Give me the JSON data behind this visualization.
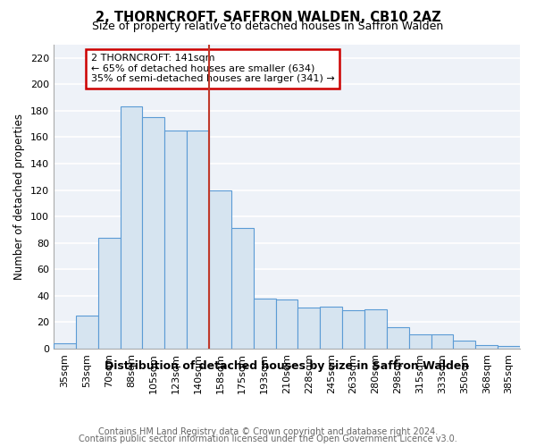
{
  "title": "2, THORNCROFT, SAFFRON WALDEN, CB10 2AZ",
  "subtitle": "Size of property relative to detached houses in Saffron Walden",
  "xlabel": "Distribution of detached houses by size in Saffron Walden",
  "ylabel": "Number of detached properties",
  "categories": [
    "35sqm",
    "53sqm",
    "70sqm",
    "88sqm",
    "105sqm",
    "123sqm",
    "140sqm",
    "158sqm",
    "175sqm",
    "193sqm",
    "210sqm",
    "228sqm",
    "245sqm",
    "263sqm",
    "280sqm",
    "298sqm",
    "315sqm",
    "333sqm",
    "350sqm",
    "368sqm",
    "385sqm"
  ],
  "values": [
    4,
    25,
    84,
    183,
    175,
    165,
    165,
    120,
    91,
    38,
    37,
    31,
    32,
    29,
    30,
    16,
    11,
    11,
    6,
    3,
    2
  ],
  "bar_color": "#d6e4f0",
  "bar_edge_color": "#5b9bd5",
  "vline_x": 6.5,
  "vline_color": "#c0392b",
  "annotation_text": "2 THORNCROFT: 141sqm\n← 65% of detached houses are smaller (634)\n35% of semi-detached houses are larger (341) →",
  "annotation_box_color": "#ffffff",
  "annotation_box_edge": "#cc0000",
  "ylim": [
    0,
    230
  ],
  "yticks": [
    0,
    20,
    40,
    60,
    80,
    100,
    120,
    140,
    160,
    180,
    200,
    220
  ],
  "footer_line1": "Contains HM Land Registry data © Crown copyright and database right 2024.",
  "footer_line2": "Contains public sector information licensed under the Open Government Licence v3.0.",
  "bg_color": "#eef2f8",
  "grid_color": "#ffffff",
  "title_fontsize": 10.5,
  "subtitle_fontsize": 9,
  "ylabel_fontsize": 8.5,
  "xlabel_fontsize": 9,
  "tick_fontsize": 8,
  "annotation_fontsize": 8,
  "footer_fontsize": 7,
  "footer_color": "#666666"
}
